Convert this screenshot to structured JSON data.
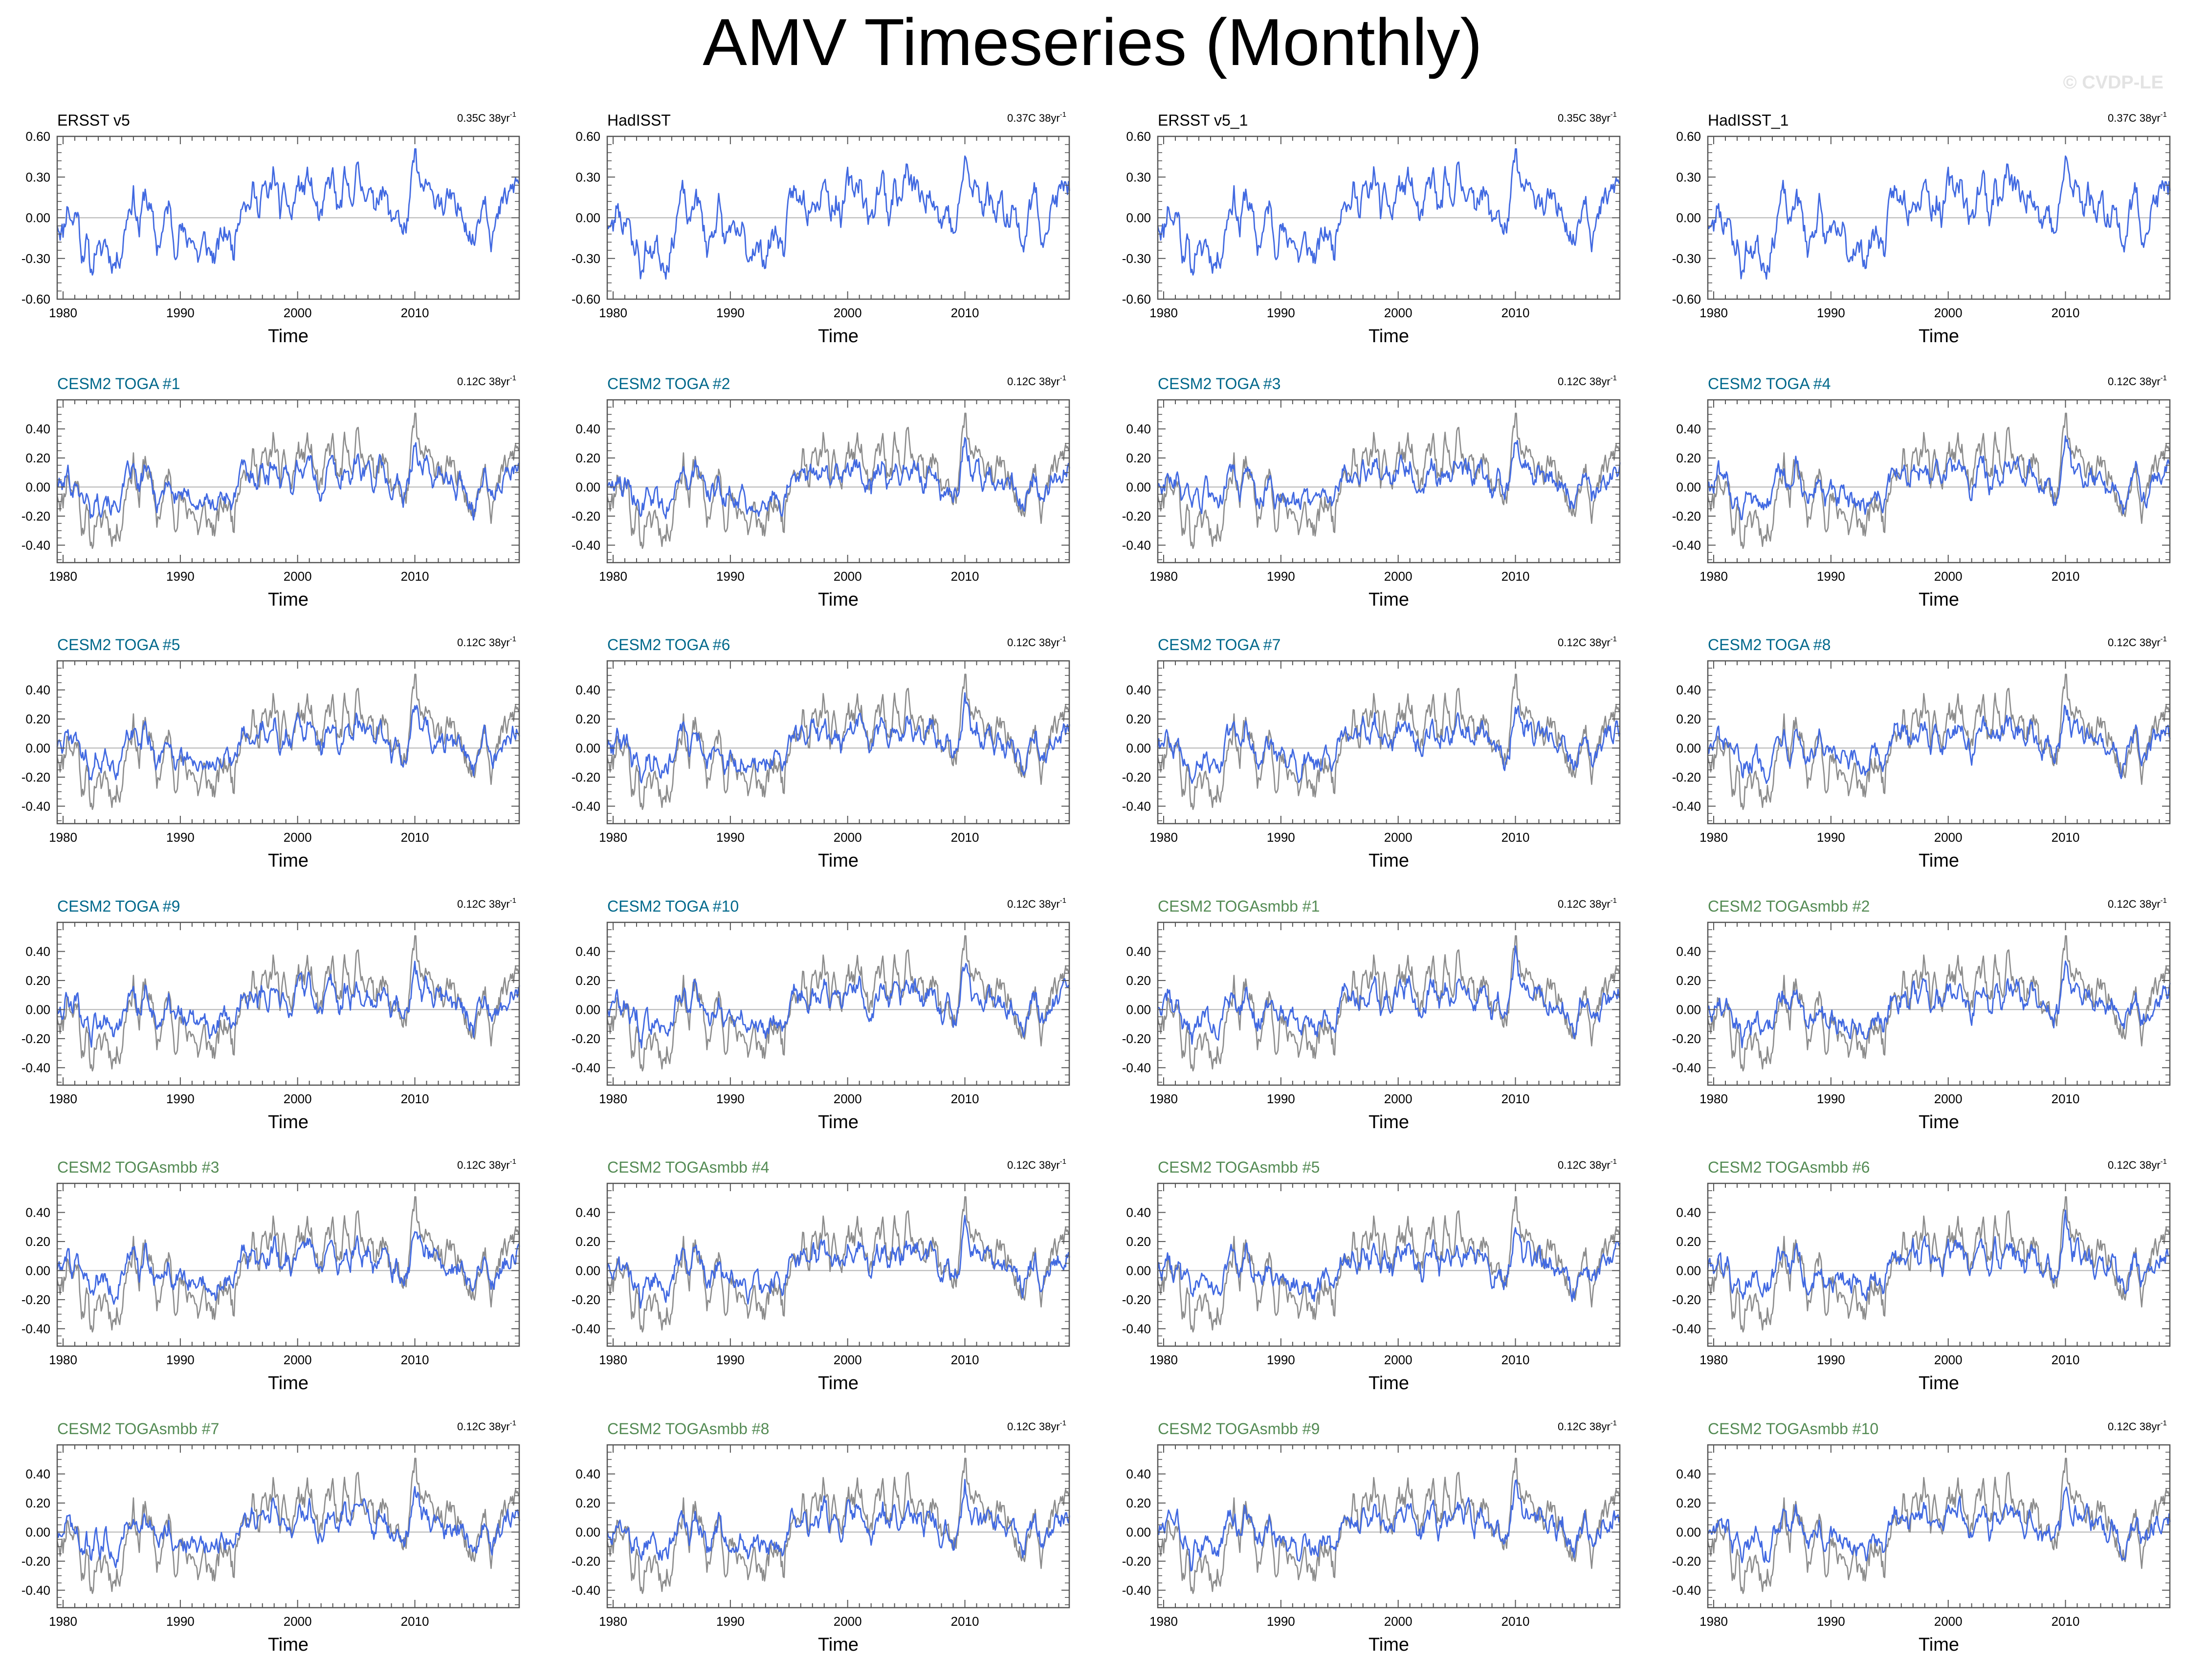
{
  "title": "AMV Timeseries (Monthly)",
  "watermark": "© CVDP-LE",
  "colors": {
    "model_line": "#4169e1",
    "obs_line": "#8c8c8c",
    "zero_line": "#b4b4b4",
    "frame": "#555555",
    "title_obs": "#000000",
    "title_toga": "#00688b",
    "title_smbb": "#548b54"
  },
  "chart_data": {
    "type": "line",
    "xlabel": "Time",
    "xlim": [
      1979.5,
      2018.9
    ],
    "xticks": [
      "1980",
      "1990",
      "2000",
      "2010"
    ],
    "obs_yticks": [
      "0.60",
      "0.30",
      "0.00",
      "-0.30",
      "-0.60"
    ],
    "obs_ylim": [
      -0.6,
      0.6
    ],
    "yticks": [
      "0.40",
      "0.20",
      "0.00",
      "-0.20",
      "-0.40"
    ],
    "ylim": [
      -0.52,
      0.6
    ],
    "trend_unit_sup": "-1",
    "obs_trend_label": "0.35C 38yr",
    "model_trend_label": "0.12C 38yr",
    "anchors_years": [
      1979.5,
      1980.0,
      1980.4,
      1980.8,
      1981.2,
      1981.6,
      1982.0,
      1982.4,
      1982.8,
      1983.2,
      1983.6,
      1984.0,
      1984.5,
      1985.0,
      1985.5,
      1986.0,
      1986.5,
      1987.0,
      1987.5,
      1988.0,
      1988.5,
      1989.0,
      1989.5,
      1990.0,
      1990.5,
      1991.0,
      1991.5,
      1992.0,
      1992.5,
      1993.0,
      1993.5,
      1994.0,
      1994.5,
      1995.0,
      1995.4,
      1995.8,
      1996.2,
      1996.6,
      1997.0,
      1997.5,
      1998.0,
      1998.5,
      1999.0,
      1999.5,
      2000.0,
      2000.5,
      2001.0,
      2001.5,
      2002.0,
      2002.5,
      2003.0,
      2003.5,
      2004.0,
      2004.5,
      2005.0,
      2005.5,
      2006.0,
      2006.5,
      2007.0,
      2007.5,
      2008.0,
      2008.5,
      2009.0,
      2009.5,
      2010.0,
      2010.3,
      2010.6,
      2011.0,
      2011.5,
      2012.0,
      2012.5,
      2013.0,
      2013.5,
      2014.0,
      2014.5,
      2015.0,
      2015.5,
      2016.0,
      2016.5,
      2017.0,
      2017.5,
      2018.0,
      2018.6
    ],
    "obs_anchor_values": [
      -0.02,
      -0.1,
      0.12,
      -0.05,
      0.08,
      -0.25,
      -0.18,
      -0.42,
      -0.2,
      -0.3,
      -0.15,
      -0.28,
      -0.33,
      -0.22,
      0.05,
      0.18,
      -0.1,
      0.2,
      0.02,
      -0.22,
      -0.1,
      0.1,
      -0.2,
      -0.05,
      -0.2,
      -0.1,
      -0.3,
      -0.18,
      -0.25,
      -0.3,
      -0.15,
      -0.1,
      -0.25,
      0.05,
      0.22,
      0.08,
      0.2,
      0.05,
      0.25,
      0.1,
      0.35,
      0.05,
      0.15,
      0.0,
      0.25,
      0.2,
      0.3,
      0.1,
      -0.05,
      0.2,
      0.3,
      0.0,
      0.25,
      0.1,
      0.35,
      0.2,
      0.25,
      0.05,
      0.25,
      0.15,
      -0.05,
      0.1,
      -0.15,
      0.05,
      0.45,
      0.3,
      0.15,
      0.25,
      0.1,
      0.2,
      0.05,
      0.15,
      0.0,
      0.1,
      -0.05,
      -0.2,
      0.05,
      0.2,
      -0.1,
      -0.05,
      0.1,
      0.15,
      0.25
    ],
    "model_anchor_values": [
      0.03,
      0.0,
      0.1,
      -0.02,
      0.06,
      -0.1,
      -0.05,
      -0.22,
      -0.05,
      -0.12,
      -0.02,
      -0.12,
      -0.15,
      -0.06,
      0.08,
      0.12,
      -0.04,
      0.15,
      0.02,
      -0.1,
      -0.05,
      0.07,
      -0.09,
      -0.03,
      -0.1,
      -0.05,
      -0.14,
      -0.08,
      -0.12,
      -0.14,
      -0.06,
      -0.05,
      -0.12,
      0.04,
      0.15,
      0.05,
      0.12,
      0.03,
      0.15,
      0.06,
      0.2,
      0.03,
      0.1,
      0.0,
      0.15,
      0.12,
      0.18,
      0.05,
      -0.04,
      0.1,
      0.18,
      0.0,
      0.14,
      0.05,
      0.2,
      0.1,
      0.14,
      0.02,
      0.14,
      0.08,
      -0.05,
      0.05,
      -0.1,
      0.02,
      0.33,
      0.22,
      0.1,
      0.16,
      0.05,
      0.12,
      0.02,
      0.08,
      -0.02,
      0.05,
      -0.06,
      -0.16,
      0.02,
      0.1,
      -0.08,
      -0.04,
      0.05,
      0.08,
      0.12
    ],
    "panels": [
      {
        "name": "ERSST v5",
        "kind": "obs",
        "trend": "0.35C 38yr",
        "seed": 11
      },
      {
        "name": "HadISST",
        "kind": "obs",
        "trend": "0.37C 38yr",
        "seed": 23
      },
      {
        "name": "ERSST v5_1",
        "kind": "obs",
        "trend": "0.35C 38yr",
        "seed": 11
      },
      {
        "name": "HadISST_1",
        "kind": "obs",
        "trend": "0.37C 38yr",
        "seed": 23
      },
      {
        "name": "CESM2 TOGA #1",
        "kind": "toga",
        "trend": "0.12C 38yr",
        "seed": 101
      },
      {
        "name": "CESM2 TOGA #2",
        "kind": "toga",
        "trend": "0.12C 38yr",
        "seed": 102
      },
      {
        "name": "CESM2 TOGA #3",
        "kind": "toga",
        "trend": "0.12C 38yr",
        "seed": 103
      },
      {
        "name": "CESM2 TOGA #4",
        "kind": "toga",
        "trend": "0.12C 38yr",
        "seed": 104
      },
      {
        "name": "CESM2 TOGA #5",
        "kind": "toga",
        "trend": "0.12C 38yr",
        "seed": 105
      },
      {
        "name": "CESM2 TOGA #6",
        "kind": "toga",
        "trend": "0.12C 38yr",
        "seed": 106
      },
      {
        "name": "CESM2 TOGA #7",
        "kind": "toga",
        "trend": "0.12C 38yr",
        "seed": 107
      },
      {
        "name": "CESM2 TOGA #8",
        "kind": "toga",
        "trend": "0.12C 38yr",
        "seed": 108
      },
      {
        "name": "CESM2 TOGA #9",
        "kind": "toga",
        "trend": "0.12C 38yr",
        "seed": 109
      },
      {
        "name": "CESM2 TOGA #10",
        "kind": "toga",
        "trend": "0.12C 38yr",
        "seed": 110
      },
      {
        "name": "CESM2 TOGAsmbb #1",
        "kind": "smbb",
        "trend": "0.12C 38yr",
        "seed": 201
      },
      {
        "name": "CESM2 TOGAsmbb #2",
        "kind": "smbb",
        "trend": "0.12C 38yr",
        "seed": 202
      },
      {
        "name": "CESM2 TOGAsmbb #3",
        "kind": "smbb",
        "trend": "0.12C 38yr",
        "seed": 203
      },
      {
        "name": "CESM2 TOGAsmbb #4",
        "kind": "smbb",
        "trend": "0.12C 38yr",
        "seed": 204
      },
      {
        "name": "CESM2 TOGAsmbb #5",
        "kind": "smbb",
        "trend": "0.12C 38yr",
        "seed": 205
      },
      {
        "name": "CESM2 TOGAsmbb #6",
        "kind": "smbb",
        "trend": "0.12C 38yr",
        "seed": 206
      },
      {
        "name": "CESM2 TOGAsmbb #7",
        "kind": "smbb",
        "trend": "0.12C 38yr",
        "seed": 207
      },
      {
        "name": "CESM2 TOGAsmbb #8",
        "kind": "smbb",
        "trend": "0.12C 38yr",
        "seed": 208
      },
      {
        "name": "CESM2 TOGAsmbb #9",
        "kind": "smbb",
        "trend": "0.12C 38yr",
        "seed": 209
      },
      {
        "name": "CESM2 TOGAsmbb #10",
        "kind": "smbb",
        "trend": "0.12C 38yr",
        "seed": 210
      }
    ]
  }
}
